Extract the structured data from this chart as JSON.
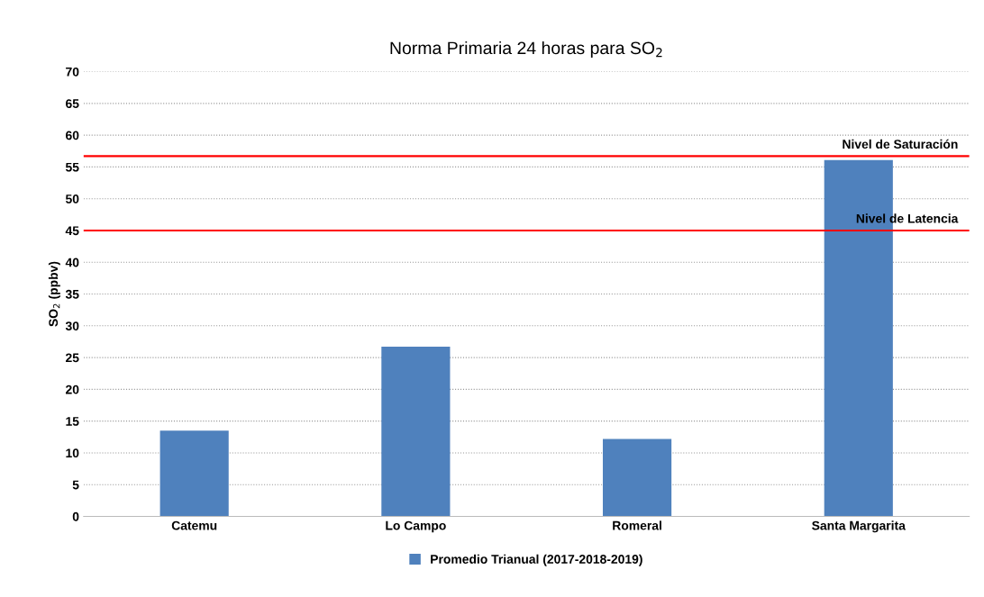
{
  "chart_data": {
    "type": "bar",
    "title": "Norma Primaria 24 horas para SO$_{2}$",
    "ylabel": "SO$_{2}$ (ppbv)",
    "categories": [
      "Catemu",
      "Lo Campo",
      "Romeral",
      "Santa Margarita"
    ],
    "series": [
      {
        "name": "Promedio Trianual (2017-2018-2019)",
        "color": "#4f81bd",
        "values": [
          13.5,
          26.7,
          12.2,
          56.1
        ]
      }
    ],
    "ylim": [
      0,
      70
    ],
    "yticks": [
      0,
      5,
      10,
      15,
      20,
      25,
      30,
      35,
      40,
      45,
      50,
      55,
      60,
      65,
      70
    ],
    "grid": "y",
    "legend": "bottom",
    "ref_lines": [
      {
        "axis": "y",
        "value": 56.7,
        "label": "Nivel de Saturación",
        "color": "#ff0000"
      },
      {
        "axis": "y",
        "value": 45.0,
        "label": "Nivel de Latencia",
        "color": "#ff0000"
      }
    ]
  }
}
